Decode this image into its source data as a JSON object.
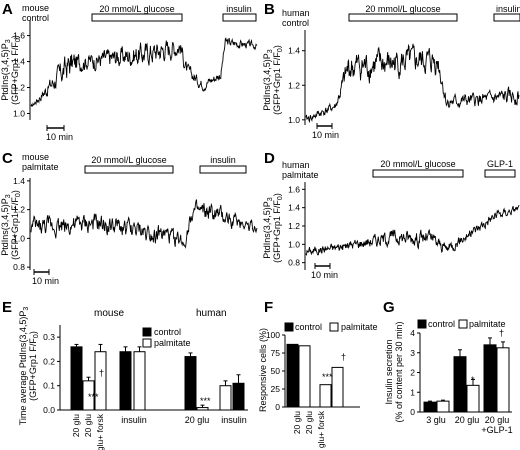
{
  "panels": {
    "A": {
      "letter": "A",
      "cond": [
        "mouse",
        "control"
      ],
      "glucose_label": "20 mmol/L glucose",
      "insulin_label": "insulin",
      "scale_label": "10 min",
      "ylabel": [
        "PtdIns(3,4,5)P",
        "(GFP+Grp1 F/F",
        ")"
      ],
      "ylabel_subs": [
        "3",
        "0"
      ],
      "yticks": [
        "1.0",
        "1.2",
        "1.4",
        "1.6"
      ]
    },
    "B": {
      "letter": "B",
      "cond": [
        "human",
        "control"
      ],
      "glucose_label": "20 mmol/L glucose",
      "insulin_label": "insulin",
      "scale_label": "10 min",
      "ylabel": [
        "PtdIns(3,4,5)P",
        "(GFP+Grp1 F/F",
        ")"
      ],
      "ylabel_subs": [
        "3",
        "0"
      ],
      "yticks": [
        "1.0",
        "1.2",
        "1.4"
      ]
    },
    "C": {
      "letter": "C",
      "cond": [
        "mouse",
        "palmitate"
      ],
      "glucose_label": "20 mmol/L glucose",
      "insulin_label": "insulin",
      "scale_label": "10 min",
      "ylabel": [
        "PtdIns(3,4,5)P",
        "(GFP+Grp1 F/F",
        ")"
      ],
      "ylabel_subs": [
        "3",
        "0"
      ],
      "yticks": [
        "0.8",
        "1.0",
        "1.2",
        "1.4"
      ]
    },
    "D": {
      "letter": "D",
      "cond": [
        "human",
        "palmitate"
      ],
      "glucose_label": "20 mmol/L glucose",
      "insulin_label": "GLP-1",
      "scale_label": "10 min",
      "ylabel": [
        "PtdIns(3,4,5)P",
        "(GFP+Grp1 F/F",
        ")"
      ],
      "ylabel_subs": [
        "3",
        "0"
      ],
      "yticks": [
        "0.8",
        "1.0",
        "1.2",
        "1.4",
        "1.6"
      ]
    },
    "E": {
      "letter": "E",
      "species": [
        "mouse",
        "human"
      ],
      "legend": [
        "control",
        "palmitate"
      ],
      "ylabel": [
        "Time average PtdIns(3,4,5)P",
        "(GFP+Grp1 F/F",
        ")"
      ],
      "ylabel_subs": [
        "3",
        "0"
      ],
      "yticks": [
        "0.0",
        "0.1",
        "0.2",
        "0.3"
      ],
      "xlabels": [
        "20 glu",
        "20 glu",
        "20 glu+ forsk",
        "insulin",
        "20 glu",
        "insulin"
      ],
      "sig": [
        "***",
        "†",
        "***"
      ]
    },
    "F": {
      "letter": "F",
      "legend": [
        "control",
        "palmitate"
      ],
      "ylabel": "Responsive cells (%)",
      "yticks": [
        "0",
        "25",
        "50",
        "75",
        "100"
      ],
      "xlabels": [
        "20 glu",
        "20 glu",
        "20 glu+ forsk"
      ],
      "sig": [
        "***",
        "†"
      ]
    },
    "G": {
      "letter": "G",
      "legend": [
        "control",
        "palmitate"
      ],
      "ylabel": [
        "Insulin secretion",
        "(% of content per 30 min)"
      ],
      "yticks": [
        "0",
        "1",
        "2",
        "3",
        "4"
      ],
      "xlabels": [
        "3 glu",
        "20 glu",
        "20 glu",
        "+GLP-1"
      ],
      "sig": [
        "*",
        "†"
      ]
    }
  },
  "colors": {
    "control": "#000000",
    "palmitate": "#ffffff",
    "line": "#000000"
  },
  "chart_data": [
    {
      "id": "A",
      "type": "line",
      "xlabel": "",
      "ylim": [
        0.95,
        1.72
      ],
      "segments": [
        [
          0,
          1.05,
          0.01,
          0.05
        ],
        [
          0.17,
          1.38,
          0.09,
          0.1
        ],
        [
          0.23,
          1.4,
          0.05,
          0.25
        ],
        [
          0.5,
          1.46,
          0.07,
          0.3
        ],
        [
          0.66,
          1.52,
          0.06,
          0.35
        ],
        [
          0.69,
          1.33,
          0.04,
          0.4
        ],
        [
          0.76,
          1.22,
          0.03,
          0.45
        ],
        [
          0.84,
          1.3,
          0.03,
          0.55
        ],
        [
          0.86,
          1.55,
          0.03,
          0.6
        ],
        [
          1.0,
          1.52,
          0.02,
          0.65
        ]
      ]
    },
    {
      "id": "B",
      "type": "line",
      "xlabel": "",
      "ylim": [
        0.97,
        1.52
      ],
      "segments": [
        [
          0,
          1.0,
          0.02,
          0.05
        ],
        [
          0.14,
          1.08,
          0.02,
          0.08
        ],
        [
          0.2,
          1.3,
          0.07,
          0.12
        ],
        [
          0.5,
          1.34,
          0.06,
          0.2
        ],
        [
          0.62,
          1.34,
          0.06,
          0.3
        ],
        [
          0.66,
          1.1,
          0.03,
          0.35
        ],
        [
          0.86,
          1.12,
          0.03,
          0.45
        ],
        [
          1.0,
          1.14,
          0.04,
          0.5
        ]
      ]
    },
    {
      "id": "C",
      "type": "line",
      "xlabel": "",
      "ylim": [
        0.78,
        1.42
      ],
      "segments": [
        [
          0,
          1.08,
          0.05,
          0.05
        ],
        [
          0.3,
          1.1,
          0.05,
          0.1
        ],
        [
          0.6,
          1.02,
          0.05,
          0.2
        ],
        [
          0.68,
          0.97,
          0.04,
          0.3
        ],
        [
          0.71,
          1.18,
          0.05,
          0.4
        ],
        [
          0.8,
          1.17,
          0.05,
          0.5
        ],
        [
          1.0,
          1.08,
          0.03,
          0.55
        ]
      ]
    },
    {
      "id": "D",
      "type": "line",
      "xlabel": "",
      "ylim": [
        0.72,
        1.68
      ],
      "segments": [
        [
          0,
          0.92,
          0.04,
          0.05
        ],
        [
          0.18,
          0.98,
          0.04,
          0.1
        ],
        [
          0.4,
          1.08,
          0.06,
          0.2
        ],
        [
          0.58,
          1.07,
          0.07,
          0.25
        ],
        [
          0.66,
          0.95,
          0.05,
          0.35
        ],
        [
          0.76,
          1.1,
          0.04,
          0.45
        ],
        [
          0.88,
          1.3,
          0.05,
          0.5
        ],
        [
          1.0,
          1.4,
          0.03,
          0.6
        ]
      ]
    },
    {
      "id": "E",
      "type": "bar",
      "ylim": [
        0,
        0.35
      ],
      "series": [
        {
          "values": [
            0.26,
            0.12,
            0.24,
            0.24,
            0.22,
            0.1
          ]
        }
      ],
      "kinds": [
        "c",
        "p",
        "p",
        "c",
        "c",
        "p"
      ],
      "errors": [
        0.01,
        0.015,
        0.03,
        0.02,
        0.015,
        0.02
      ],
      "extra": [
        {
          "pos": 3,
          "value": 0.24,
          "kind": "p",
          "error": 0.02
        },
        {
          "pos": 4,
          "value": 0.01,
          "kind": "p",
          "error": 0.01
        },
        {
          "pos": 5,
          "value": 0.11,
          "kind": "c",
          "error": 0.035
        }
      ]
    },
    {
      "id": "F",
      "type": "bar",
      "ylim": [
        0,
        100
      ],
      "series": [
        {
          "name": "control",
          "values": [
            87
          ]
        },
        {
          "name": "palmitate",
          "values": [
            85,
            31,
            55
          ]
        }
      ]
    },
    {
      "id": "G",
      "type": "bar",
      "ylim": [
        0,
        4
      ],
      "categories": [
        "3 glu",
        "20 glu",
        "20 glu +GLP-1"
      ],
      "series": [
        {
          "name": "control",
          "values": [
            0.5,
            2.8,
            3.4
          ],
          "errors": [
            0.05,
            0.35,
            0.35
          ]
        },
        {
          "name": "palmitate",
          "values": [
            0.55,
            1.35,
            3.25
          ],
          "errors": [
            0.05,
            0.3,
            0.3
          ]
        }
      ]
    }
  ]
}
